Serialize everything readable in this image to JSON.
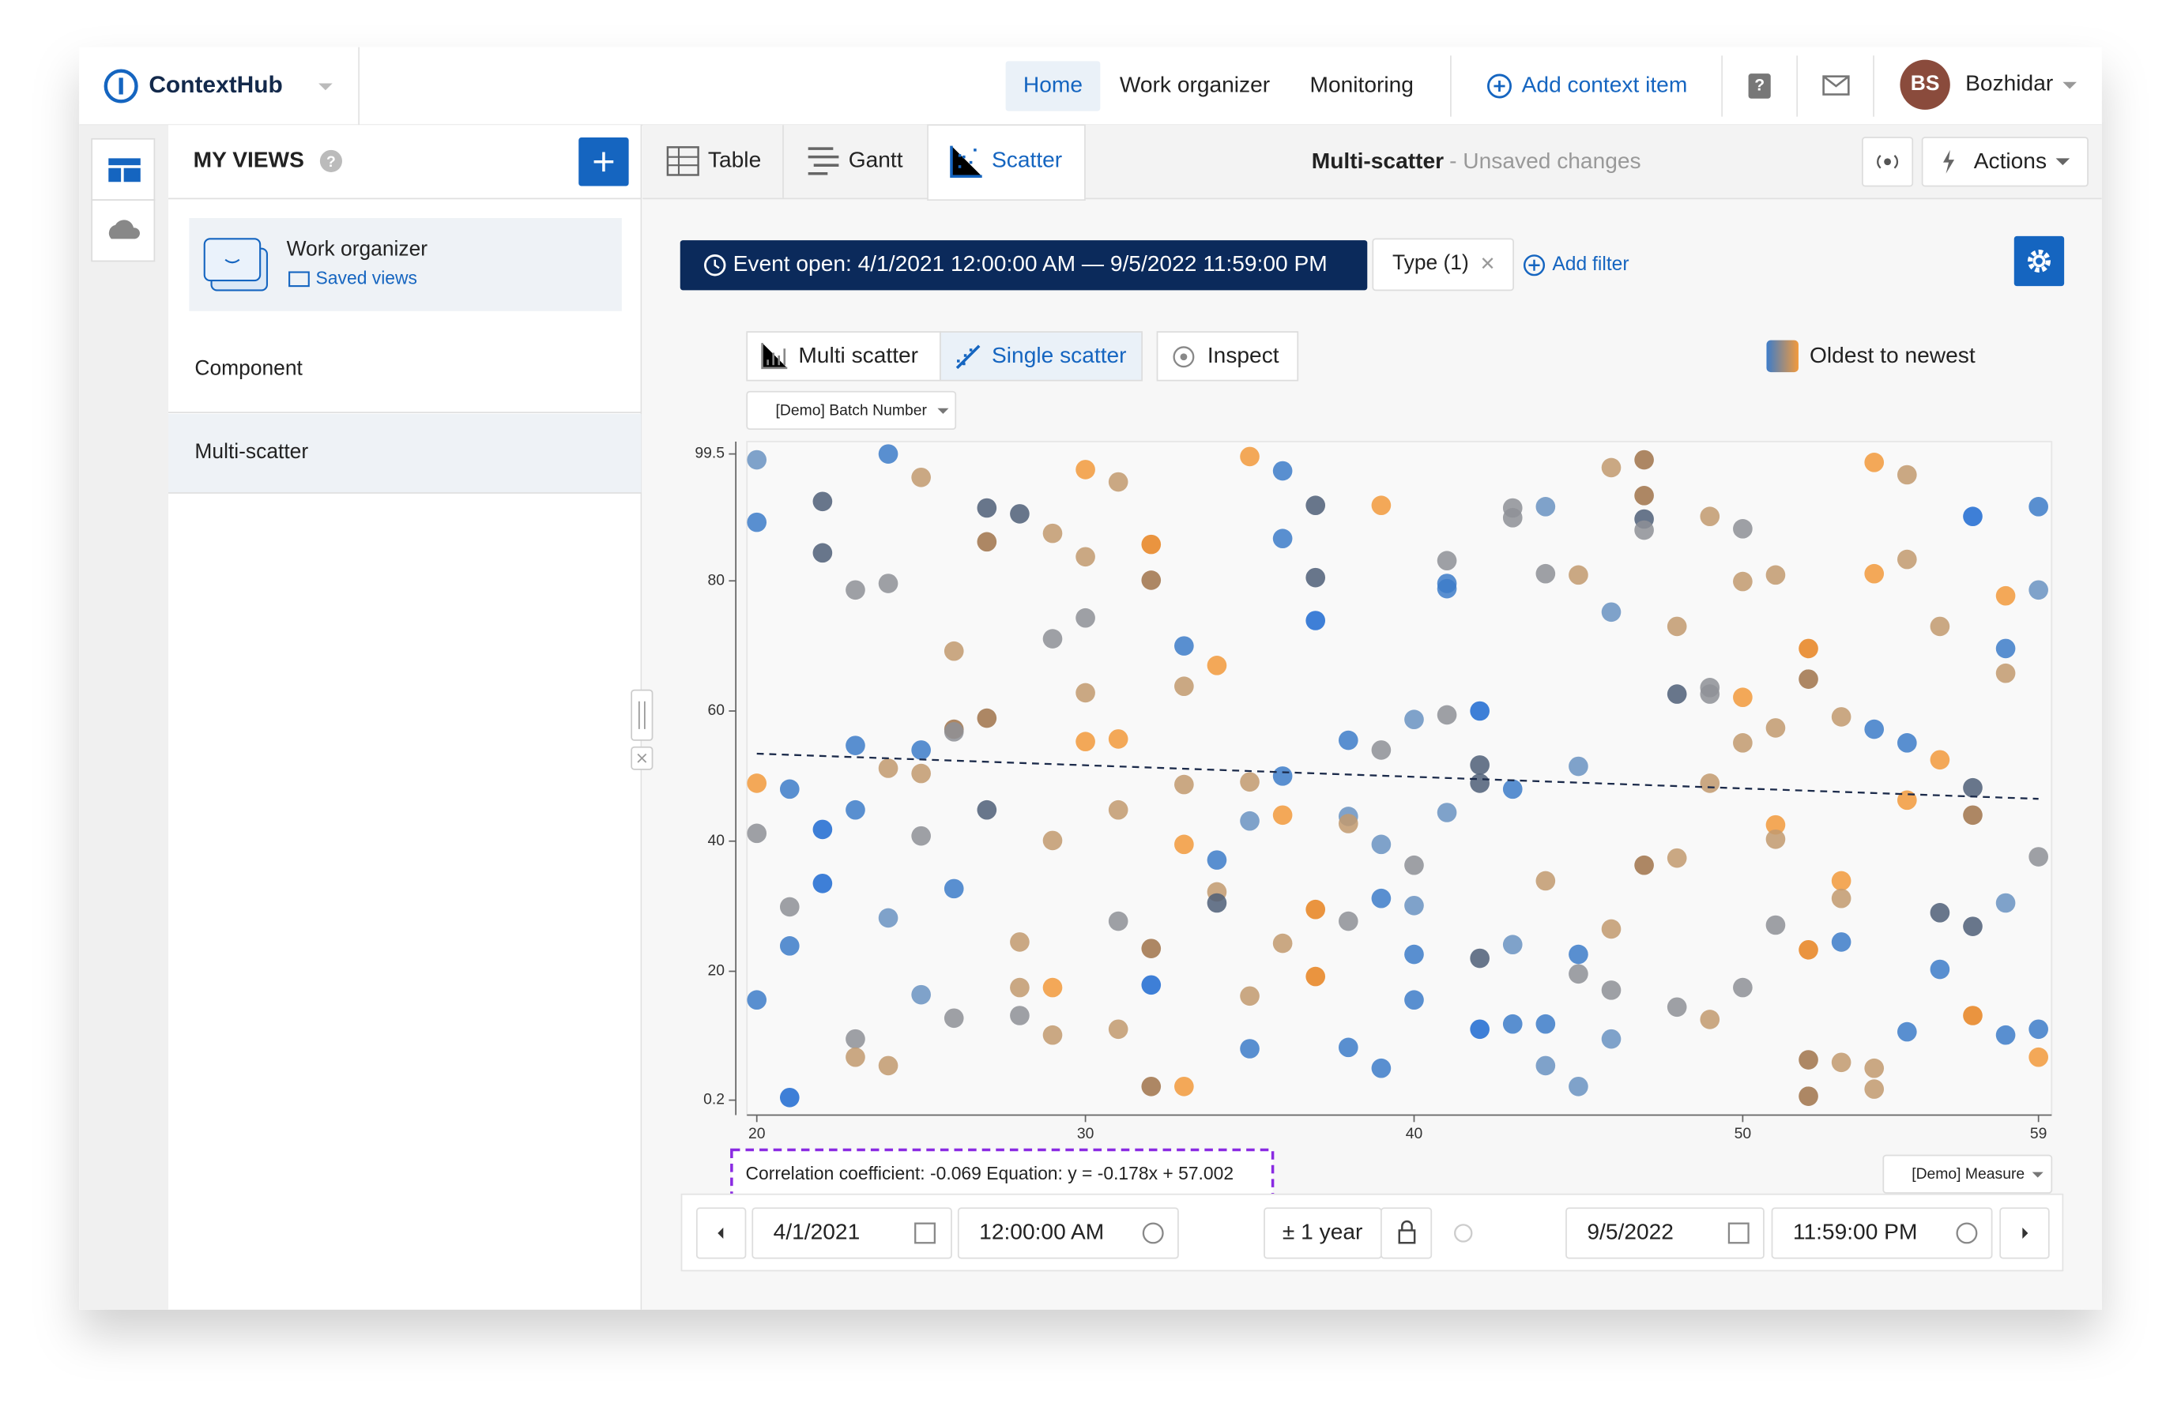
{
  "app": {
    "logo": "ContextHub",
    "nav": [
      "Home",
      "Work organizer",
      "Monitoring"
    ],
    "add_context_item": "Add context item",
    "user_initials": "BS",
    "user_name": "Bozhidar",
    "sidebar": {
      "title": "MY VIEWS",
      "card_title": "Work organizer",
      "card_link": "Saved views",
      "items": [
        "Component",
        "Multi-scatter"
      ]
    },
    "tabs": [
      "Table",
      "Gantt",
      "Scatter"
    ],
    "view_title": "Multi-scatter",
    "view_status": "- Unsaved changes",
    "actions": "Actions",
    "filters": {
      "event": "Event open: 4/1/2021 12:00:00 AM — 9/5/2022 11:59:00 PM",
      "type": "Type (1)",
      "add": "Add filter"
    },
    "modes": [
      "Multi scatter",
      "Single scatter",
      "Inspect"
    ],
    "time": {
      "start_date": "4/1/2021",
      "start_time": "12:00:00 AM",
      "range": "± 1 year",
      "end_date": "9/5/2022",
      "end_time": "11:59:00 PM"
    }
  },
  "chart_data": {
    "type": "scatter",
    "xlabel": "[Demo] Measure",
    "ylabel": "[Demo] Batch Number",
    "legend": "Oldest to newest",
    "annotation": "Correlation coefficient: -0.069 Equation: y = -0.178x + 57.002",
    "trendline": {
      "slope": -0.178,
      "intercept": 57.002
    },
    "xlim": [
      19.7,
      59.4
    ],
    "xticks": [
      20,
      30,
      40,
      50,
      59
    ],
    "ylim": [
      -2.1,
      101.4
    ],
    "yticks": [
      0.2,
      20,
      40,
      60,
      80,
      99.5
    ],
    "x": [
      20,
      20,
      20,
      20,
      20,
      21,
      21,
      21,
      21,
      22,
      22,
      22,
      22,
      23,
      23,
      23,
      23,
      23,
      24,
      24,
      24,
      24,
      24,
      25,
      25,
      25,
      25,
      25,
      26,
      26,
      26,
      26,
      26,
      27,
      27,
      27,
      27,
      28,
      28,
      28,
      28,
      29,
      29,
      29,
      29,
      29,
      30,
      30,
      30,
      30,
      30,
      31,
      31,
      31,
      31,
      31,
      32,
      32,
      32,
      32,
      32,
      33,
      33,
      33,
      33,
      33,
      34,
      34,
      34,
      34,
      35,
      35,
      35,
      35,
      35,
      36,
      36,
      36,
      36,
      36,
      37,
      37,
      37,
      37,
      37,
      38,
      38,
      38,
      38,
      38,
      39,
      39,
      39,
      39,
      39,
      40,
      40,
      40,
      40,
      40,
      41,
      41,
      41,
      41,
      41,
      42,
      42,
      42,
      42,
      42,
      43,
      43,
      43,
      43,
      43,
      44,
      44,
      44,
      44,
      44,
      45,
      45,
      45,
      45,
      45,
      46,
      46,
      46,
      46,
      46,
      47,
      47,
      47,
      47,
      47,
      48,
      48,
      48,
      48,
      49,
      49,
      49,
      49,
      49,
      50,
      50,
      50,
      50,
      50,
      51,
      51,
      51,
      51,
      51,
      52,
      52,
      52,
      52,
      52,
      53,
      53,
      53,
      53,
      53,
      54,
      54,
      54,
      54,
      54,
      55,
      55,
      55,
      55,
      55,
      56,
      56,
      56,
      56,
      57,
      57,
      57,
      57,
      57,
      58,
      58,
      58,
      58,
      58,
      59,
      59,
      59,
      59,
      59
    ],
    "y": [
      98.6,
      89.0,
      48.9,
      41.2,
      15.6,
      48.0,
      29.9,
      23.9,
      0.6,
      92.2,
      84.3,
      41.8,
      33.5,
      78.6,
      54.7,
      44.8,
      9.6,
      6.8,
      99.5,
      79.6,
      51.2,
      28.2,
      5.5,
      95.9,
      54.0,
      50.4,
      40.8,
      16.4,
      69.2,
      57.2,
      56.8,
      32.7,
      12.8,
      91.2,
      86.0,
      58.9,
      44.8,
      90.3,
      24.5,
      17.5,
      13.2,
      87.3,
      71.1,
      40.1,
      17.5,
      10.2,
      97.1,
      83.7,
      74.3,
      62.8,
      55.3,
      95.2,
      55.7,
      44.8,
      27.7,
      11.1,
      85.6,
      80.1,
      23.5,
      17.9,
      2.3,
      70.0,
      63.8,
      48.7,
      39.5,
      2.3,
      67.0,
      37.1,
      32.2,
      30.5,
      99.1,
      49.1,
      43.1,
      16.2,
      8.1,
      96.9,
      86.5,
      50.0,
      44.0,
      24.3,
      91.6,
      80.5,
      73.9,
      29.5,
      19.2,
      55.5,
      43.8,
      42.7,
      27.7,
      8.3,
      91.6,
      54.0,
      39.5,
      31.2,
      5.1,
      58.7,
      36.3,
      30.1,
      22.6,
      15.6,
      83.1,
      79.6,
      78.8,
      59.4,
      44.4,
      60.0,
      51.7,
      48.9,
      22.0,
      11.1,
      91.2,
      89.7,
      48.0,
      24.1,
      11.9,
      91.4,
      81.1,
      33.9,
      11.9,
      5.5,
      80.9,
      51.5,
      22.6,
      19.6,
      2.3,
      97.4,
      75.2,
      26.5,
      17.1,
      9.6,
      98.6,
      93.1,
      89.5,
      87.8,
      36.3,
      73.0,
      62.6,
      37.4,
      14.5,
      89.9,
      63.6,
      62.6,
      48.9,
      12.6,
      88.0,
      79.9,
      62.1,
      55.1,
      17.5,
      80.9,
      57.4,
      42.5,
      40.3,
      27.1,
      69.6,
      64.9,
      23.3,
      6.4,
      0.8,
      59.1,
      33.9,
      31.2,
      24.5,
      6.0,
      98.2,
      81.1,
      57.2,
      5.1,
      1.9,
      96.3,
      83.3,
      55.1,
      46.3,
      10.7,
      73.0,
      52.5,
      29.0,
      20.3,
      89.9,
      48.2,
      44.0,
      26.9,
      13.2,
      77.7,
      69.6,
      65.8,
      30.5,
      10.2,
      91.4,
      78.6,
      37.6,
      11.1,
      6.8
    ],
    "colors": [
      "#6a93c2",
      "#3d7cc9",
      "#f29a3c",
      "#8e9196",
      "#3d7cc9",
      "#3d7cc9",
      "#8e9196",
      "#3d7cc9",
      "#1d6ad1",
      "#4f5f78",
      "#4f5f78",
      "#1d6ad1",
      "#1d6ad1",
      "#8e9196",
      "#3d7cc9",
      "#3d7cc9",
      "#8e9196",
      "#c29a6e",
      "#3d7cc9",
      "#8e9196",
      "#c29a6e",
      "#6a93c2",
      "#c29a6e",
      "#c29a6e",
      "#3d7cc9",
      "#c29a6e",
      "#8e9196",
      "#6a93c2",
      "#c29a6e",
      "#a0734a",
      "#8e9196",
      "#3d7cc9",
      "#8e9196",
      "#4f5f78",
      "#a0734a",
      "#a0734a",
      "#4f5f78",
      "#4f5f78",
      "#c29a6e",
      "#c29a6e",
      "#8e9196",
      "#c29a6e",
      "#8e9196",
      "#c29a6e",
      "#f29a3c",
      "#c29a6e",
      "#f29a3c",
      "#c29a6e",
      "#8e9196",
      "#c29a6e",
      "#f29a3c",
      "#c29a6e",
      "#f29a3c",
      "#c29a6e",
      "#8e9196",
      "#c29a6e",
      "#e8821e",
      "#a0734a",
      "#a0734a",
      "#1d6ad1",
      "#a0734a",
      "#3d7cc9",
      "#c29a6e",
      "#c29a6e",
      "#f29a3c",
      "#f29a3c",
      "#f29a3c",
      "#3d7cc9",
      "#c29a6e",
      "#4f5f78",
      "#f29a3c",
      "#c29a6e",
      "#6a93c2",
      "#c29a6e",
      "#3d7cc9",
      "#3d7cc9",
      "#3d7cc9",
      "#3d7cc9",
      "#f29a3c",
      "#c29a6e",
      "#4f5f78",
      "#4f5f78",
      "#1d6ad1",
      "#e8821e",
      "#e8821e",
      "#3d7cc9",
      "#6a93c2",
      "#c29a6e",
      "#8e9196",
      "#3d7cc9",
      "#f29a3c",
      "#8e9196",
      "#6a93c2",
      "#3d7cc9",
      "#3d7cc9",
      "#6a93c2",
      "#8e9196",
      "#6a93c2",
      "#3d7cc9",
      "#3d7cc9",
      "#8e9196",
      "#3d7cc9",
      "#3d7cc9",
      "#8e9196",
      "#6a93c2",
      "#1d6ad1",
      "#4f5f78",
      "#4f5f78",
      "#4f5f78",
      "#1d6ad1",
      "#8e9196",
      "#8e9196",
      "#3d7cc9",
      "#6a93c2",
      "#3d7cc9",
      "#6a93c2",
      "#8e9196",
      "#c29a6e",
      "#3d7cc9",
      "#6a93c2",
      "#c29a6e",
      "#6a93c2",
      "#3d7cc9",
      "#8e9196",
      "#6a93c2",
      "#c29a6e",
      "#6a93c2",
      "#c29a6e",
      "#8e9196",
      "#6a93c2",
      "#a0734a",
      "#a0734a",
      "#4f5f78",
      "#8e9196",
      "#a0734a",
      "#c29a6e",
      "#4f5f78",
      "#c29a6e",
      "#8e9196",
      "#c29a6e",
      "#8e9196",
      "#8e9196",
      "#c29a6e",
      "#c29a6e",
      "#8e9196",
      "#c29a6e",
      "#f29a3c",
      "#c29a6e",
      "#8e9196",
      "#c29a6e",
      "#c29a6e",
      "#f29a3c",
      "#c29a6e",
      "#8e9196",
      "#e8821e",
      "#a0734a",
      "#e8821e",
      "#a0734a",
      "#a0734a",
      "#c29a6e",
      "#f29a3c",
      "#c29a6e",
      "#3d7cc9",
      "#c29a6e",
      "#f29a3c",
      "#f29a3c",
      "#3d7cc9",
      "#c29a6e",
      "#c29a6e",
      "#c29a6e",
      "#c29a6e",
      "#3d7cc9",
      "#f29a3c",
      "#3d7cc9",
      "#c29a6e",
      "#f29a3c",
      "#4f5f78",
      "#3d7cc9",
      "#1d6ad1",
      "#4f5f78",
      "#a0734a",
      "#4f5f78",
      "#e8821e",
      "#f29a3c",
      "#3d7cc9",
      "#c29a6e",
      "#6a93c2",
      "#3d7cc9",
      "#3d7cc9",
      "#6a93c2",
      "#8e9196",
      "#3d7cc9",
      "#f29a3c"
    ]
  }
}
